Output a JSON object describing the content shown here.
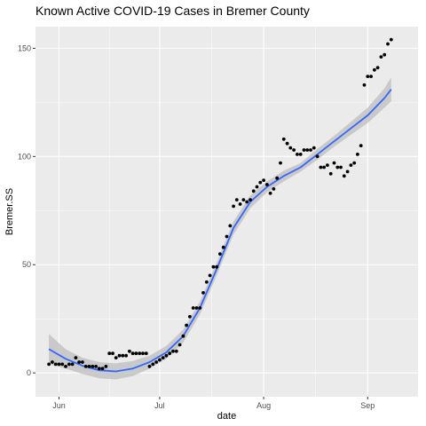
{
  "chart_data": {
    "type": "scatter",
    "title": "Known Active COVID-19 Cases in Bremer County",
    "xlabel": "date",
    "ylabel": "Bremer.SS",
    "x_ticks": [
      {
        "label": "Jun",
        "date": "2020-06-01"
      },
      {
        "label": "Jul",
        "date": "2020-07-01"
      },
      {
        "label": "Aug",
        "date": "2020-08-01"
      },
      {
        "label": "Sep",
        "date": "2020-09-01"
      }
    ],
    "y_ticks": [
      0,
      50,
      100,
      150
    ],
    "xlim": [
      "2020-05-25",
      "2020-09-16"
    ],
    "ylim": [
      -11,
      160
    ],
    "grid": true,
    "colors": {
      "panel": "#ebebeb",
      "grid": "#ffffff",
      "points": "#000000",
      "smooth_line": "#3366ff",
      "ribbon": "#bdbdbd"
    },
    "series": [
      {
        "kind": "points",
        "x": [
          "2020-05-29",
          "2020-05-30",
          "2020-05-31",
          "2020-06-01",
          "2020-06-02",
          "2020-06-03",
          "2020-06-04",
          "2020-06-05",
          "2020-06-06",
          "2020-06-07",
          "2020-06-08",
          "2020-06-09",
          "2020-06-10",
          "2020-06-11",
          "2020-06-12",
          "2020-06-13",
          "2020-06-14",
          "2020-06-15",
          "2020-06-16",
          "2020-06-17",
          "2020-06-18",
          "2020-06-19",
          "2020-06-20",
          "2020-06-21",
          "2020-06-22",
          "2020-06-23",
          "2020-06-24",
          "2020-06-25",
          "2020-06-26",
          "2020-06-27",
          "2020-06-28",
          "2020-06-29",
          "2020-06-30",
          "2020-07-01",
          "2020-07-02",
          "2020-07-03",
          "2020-07-04",
          "2020-07-05",
          "2020-07-06",
          "2020-07-07",
          "2020-07-08",
          "2020-07-09",
          "2020-07-10",
          "2020-07-11",
          "2020-07-12",
          "2020-07-13",
          "2020-07-14",
          "2020-07-15",
          "2020-07-16",
          "2020-07-17",
          "2020-07-18",
          "2020-07-19",
          "2020-07-20",
          "2020-07-21",
          "2020-07-22",
          "2020-07-23",
          "2020-07-24",
          "2020-07-25",
          "2020-07-26",
          "2020-07-27",
          "2020-07-28",
          "2020-07-29",
          "2020-07-30",
          "2020-07-31",
          "2020-08-01",
          "2020-08-02",
          "2020-08-03",
          "2020-08-04",
          "2020-08-05",
          "2020-08-06",
          "2020-08-07",
          "2020-08-08",
          "2020-08-09",
          "2020-08-10",
          "2020-08-11",
          "2020-08-12",
          "2020-08-13",
          "2020-08-14",
          "2020-08-15",
          "2020-08-16",
          "2020-08-17",
          "2020-08-18",
          "2020-08-19",
          "2020-08-20",
          "2020-08-21",
          "2020-08-22",
          "2020-08-23",
          "2020-08-24",
          "2020-08-25",
          "2020-08-26",
          "2020-08-27",
          "2020-08-28",
          "2020-08-29",
          "2020-08-30",
          "2020-08-31",
          "2020-09-01",
          "2020-09-02",
          "2020-09-03",
          "2020-09-04",
          "2020-09-05",
          "2020-09-06",
          "2020-09-07",
          "2020-09-08"
        ],
        "y": [
          4,
          5,
          4,
          4,
          4,
          3,
          4,
          4,
          7,
          5,
          5,
          3,
          3,
          3,
          3,
          2,
          2,
          3,
          9,
          9,
          7,
          8,
          8,
          8,
          10,
          9,
          9,
          9,
          9,
          9,
          3,
          4,
          5,
          6,
          7,
          8,
          9,
          10,
          10,
          13,
          17,
          22,
          26,
          30,
          30,
          30,
          37,
          42,
          45,
          49,
          49,
          55,
          58,
          63,
          68,
          77,
          80,
          78,
          80,
          79,
          80,
          84,
          86,
          88,
          89,
          87,
          83,
          85,
          90,
          97,
          108,
          106,
          104,
          103,
          101,
          101,
          103,
          103,
          103,
          104,
          100,
          95,
          95,
          96,
          92,
          97,
          95,
          95,
          91,
          93,
          96,
          97,
          101,
          105,
          133,
          137,
          137,
          140,
          141,
          146,
          147,
          152,
          154
        ]
      },
      {
        "kind": "loess",
        "x": [
          "2020-05-29",
          "2020-06-03",
          "2020-06-08",
          "2020-06-13",
          "2020-06-18",
          "2020-06-23",
          "2020-06-28",
          "2020-07-03",
          "2020-07-08",
          "2020-07-13",
          "2020-07-18",
          "2020-07-23",
          "2020-07-28",
          "2020-08-02",
          "2020-08-07",
          "2020-08-12",
          "2020-08-17",
          "2020-08-22",
          "2020-08-27",
          "2020-09-01",
          "2020-09-06",
          "2020-09-08"
        ],
        "y": [
          11,
          6.5,
          3.3,
          1.2,
          0.7,
          2,
          5,
          9.5,
          17,
          30,
          48,
          67,
          79,
          86,
          91,
          95,
          101,
          107,
          113,
          119,
          127,
          131
        ],
        "lower": [
          4,
          2,
          -0.5,
          -2.5,
          -3,
          -1.5,
          2,
          6.5,
          14,
          27,
          45,
          64,
          76,
          83.5,
          88.5,
          93,
          98.5,
          104.5,
          110,
          115.5,
          122.5,
          125.5
        ],
        "upper": [
          18,
          11,
          7,
          5,
          4.4,
          5.5,
          8,
          12.5,
          20,
          33,
          51,
          70,
          82,
          88.5,
          93.5,
          97,
          103.5,
          109.5,
          116,
          122.5,
          131.5,
          136.5
        ]
      }
    ]
  }
}
